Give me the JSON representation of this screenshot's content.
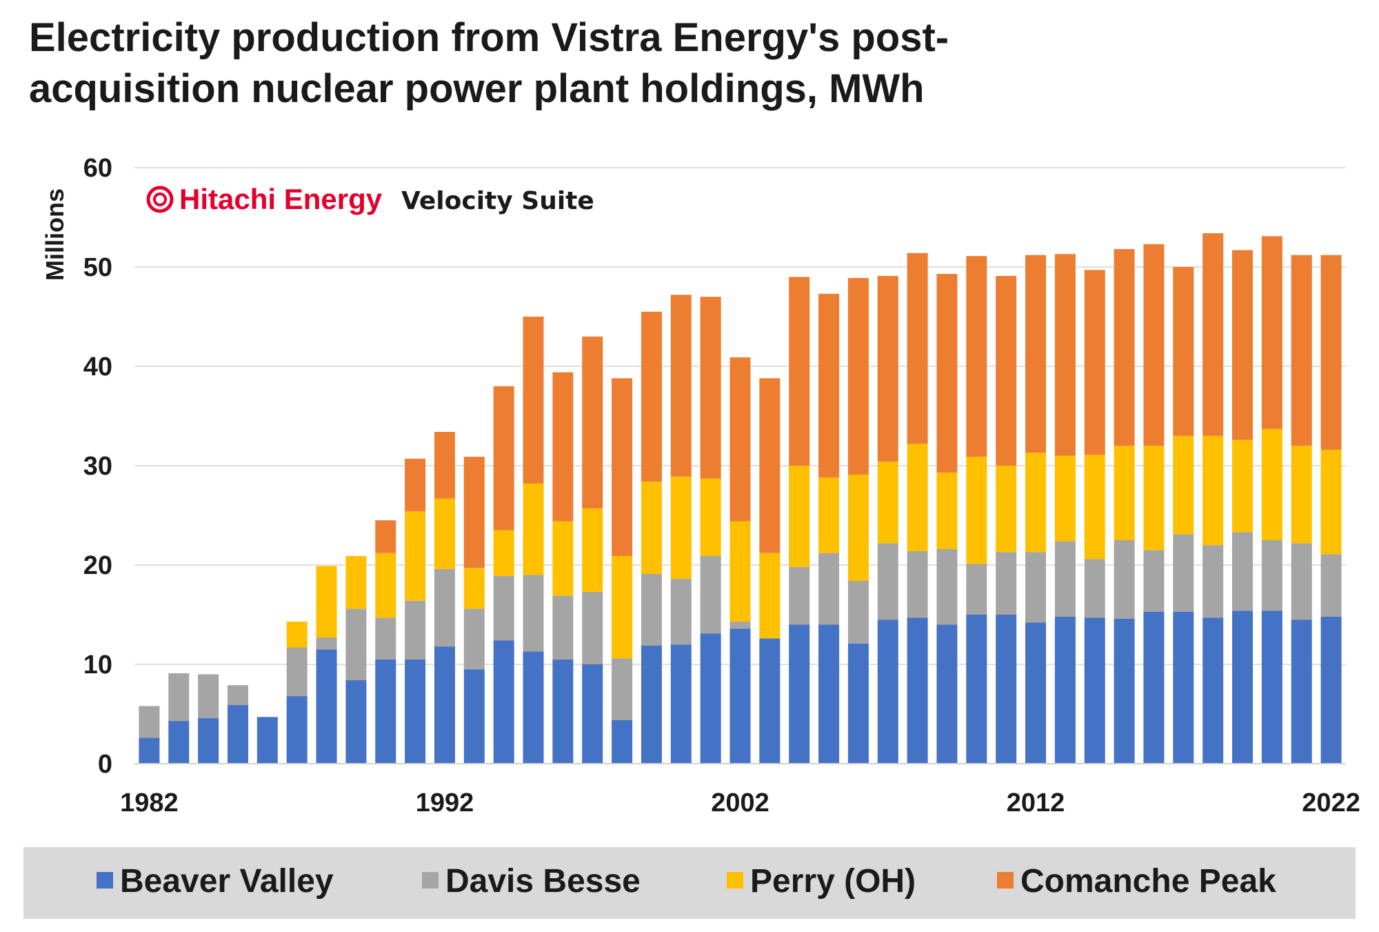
{
  "chart_data": {
    "type": "bar",
    "stacked": true,
    "title_lines": [
      "Electricity production from Vistra Energy's post-",
      "acquisition nuclear power plant holdings, MWh"
    ],
    "ylabel": "Millions",
    "ylim": [
      0,
      60
    ],
    "yticks": [
      "0",
      "10",
      "20",
      "30",
      "40",
      "50",
      "60"
    ],
    "xtick_labels": [
      "1982",
      "1992",
      "2002",
      "2012",
      "2022"
    ],
    "grid": true,
    "legend_position": "bottom",
    "watermark": {
      "brand": "Hitachi Energy",
      "suite": "Velocity Suite",
      "brand_color": "#e4002b"
    },
    "categories": [
      "1982",
      "1983",
      "1984",
      "1985",
      "1986",
      "1987",
      "1988",
      "1989",
      "1990",
      "1991",
      "1992",
      "1993",
      "1994",
      "1995",
      "1996",
      "1997",
      "1998",
      "1999",
      "2000",
      "2001",
      "2002",
      "2003",
      "2004",
      "2005",
      "2006",
      "2007",
      "2008",
      "2009",
      "2010",
      "2011",
      "2012",
      "2013",
      "2014",
      "2015",
      "2016",
      "2017",
      "2018",
      "2019",
      "2020",
      "2021",
      "2022"
    ],
    "series": [
      {
        "name": "Beaver Valley",
        "color": "#4472c4",
        "values": [
          2.6,
          4.3,
          4.6,
          5.9,
          4.7,
          6.8,
          11.5,
          8.4,
          10.5,
          10.5,
          11.8,
          9.5,
          12.4,
          11.3,
          10.5,
          10.0,
          4.4,
          11.9,
          12.0,
          13.1,
          13.6,
          12.6,
          14.0,
          14.0,
          12.1,
          14.5,
          14.7,
          14.0,
          15.0,
          15.0,
          14.2,
          14.8,
          14.7,
          14.6,
          15.3,
          15.3,
          14.7,
          15.4,
          15.4,
          14.5,
          14.8
        ]
      },
      {
        "name": "Davis Besse",
        "color": "#a5a5a5",
        "values": [
          3.2,
          4.8,
          4.4,
          2.0,
          0.0,
          4.9,
          1.2,
          7.2,
          4.2,
          5.9,
          7.8,
          6.1,
          6.5,
          7.7,
          6.4,
          7.3,
          6.2,
          7.2,
          6.6,
          7.8,
          0.7,
          0.0,
          5.8,
          7.2,
          6.3,
          7.7,
          6.7,
          7.6,
          5.1,
          6.3,
          7.1,
          7.6,
          5.9,
          7.9,
          6.2,
          7.8,
          7.3,
          7.9,
          7.1,
          7.7,
          6.3
        ]
      },
      {
        "name": "Perry (OH)",
        "color": "#ffc000",
        "values": [
          0.0,
          0.0,
          0.0,
          0.0,
          0.0,
          2.6,
          7.2,
          5.3,
          6.5,
          9.0,
          7.1,
          4.1,
          4.6,
          9.2,
          7.5,
          8.4,
          10.3,
          9.3,
          10.3,
          7.8,
          10.1,
          8.6,
          10.2,
          7.6,
          10.7,
          8.2,
          10.8,
          7.7,
          10.8,
          8.7,
          10.0,
          8.6,
          10.5,
          9.5,
          10.5,
          9.9,
          11.0,
          9.3,
          11.2,
          9.8,
          10.5
        ]
      },
      {
        "name": "Comanche Peak",
        "color": "#ed7d31",
        "values": [
          0.0,
          0.0,
          0.0,
          0.0,
          0.0,
          0.0,
          0.0,
          0.0,
          3.3,
          5.3,
          6.7,
          11.2,
          14.5,
          16.8,
          15.0,
          17.3,
          17.9,
          17.1,
          18.3,
          18.3,
          16.5,
          17.6,
          19.0,
          18.5,
          19.8,
          18.7,
          19.2,
          20.0,
          20.2,
          19.1,
          19.9,
          20.3,
          18.6,
          19.8,
          20.3,
          17.0,
          20.4,
          19.1,
          19.4,
          19.2,
          19.6
        ]
      }
    ]
  }
}
